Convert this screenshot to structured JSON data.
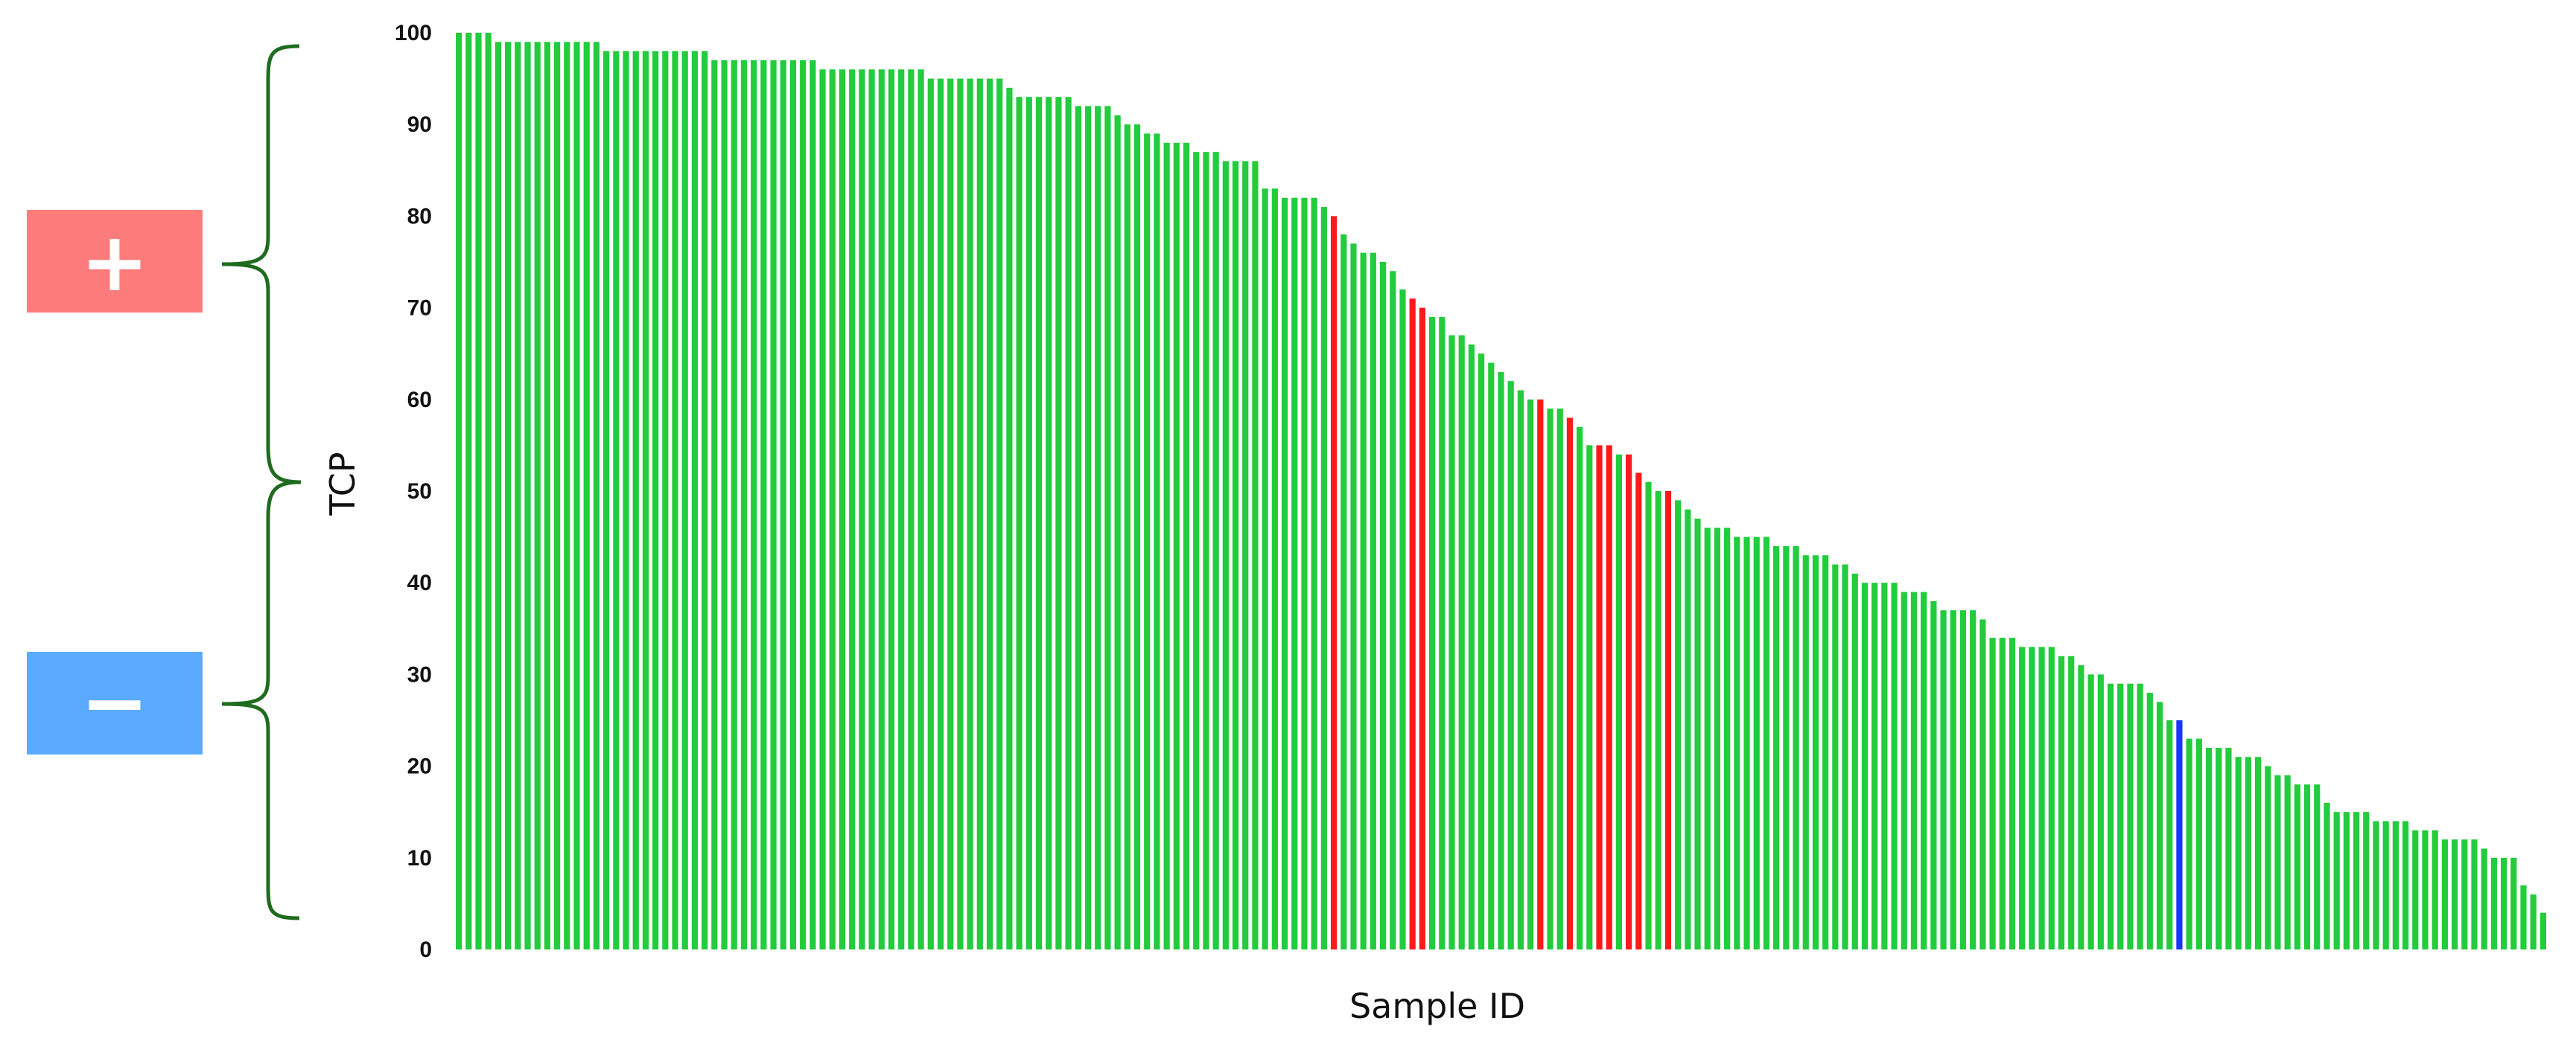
{
  "chart_data": {
    "type": "bar",
    "title": "",
    "xlabel": "Sample ID",
    "ylabel": "TCP",
    "ylim": [
      0,
      100
    ],
    "yticks": [
      0,
      10,
      20,
      30,
      40,
      50,
      60,
      70,
      80,
      90,
      100
    ],
    "grid": false,
    "legend": "none",
    "colors": {
      "default": "#22cc3c",
      "highlight_red": "#ff1a1a",
      "highlight_blue": "#1a33ff"
    },
    "values": [
      100,
      100,
      100,
      100,
      99,
      99,
      99,
      99,
      99,
      99,
      99,
      99,
      99,
      99,
      99,
      98,
      98,
      98,
      98,
      98,
      98,
      98,
      98,
      98,
      98,
      98,
      97,
      97,
      97,
      97,
      97,
      97,
      97,
      97,
      97,
      97,
      97,
      96,
      96,
      96,
      96,
      96,
      96,
      96,
      96,
      96,
      96,
      96,
      95,
      95,
      95,
      95,
      95,
      95,
      95,
      95,
      94,
      93,
      93,
      93,
      93,
      93,
      93,
      92,
      92,
      92,
      92,
      91,
      90,
      90,
      89,
      89,
      88,
      88,
      88,
      87,
      87,
      87,
      86,
      86,
      86,
      86,
      83,
      83,
      82,
      82,
      82,
      82,
      81,
      80,
      78,
      77,
      76,
      76,
      75,
      74,
      72,
      71,
      70,
      69,
      69,
      67,
      67,
      66,
      65,
      64,
      63,
      62,
      61,
      60,
      60,
      59,
      59,
      58,
      57,
      55,
      55,
      55,
      54,
      54,
      52,
      51,
      50,
      50,
      49,
      48,
      47,
      46,
      46,
      46,
      45,
      45,
      45,
      45,
      44,
      44,
      44,
      43,
      43,
      43,
      42,
      42,
      41,
      40,
      40,
      40,
      40,
      39,
      39,
      39,
      38,
      37,
      37,
      37,
      37,
      36,
      34,
      34,
      34,
      33,
      33,
      33,
      33,
      32,
      32,
      31,
      30,
      30,
      29,
      29,
      29,
      29,
      28,
      27,
      25,
      25,
      23,
      23,
      22,
      22,
      22,
      21,
      21,
      21,
      20,
      19,
      19,
      18,
      18,
      18,
      16,
      15,
      15,
      15,
      15,
      14,
      14,
      14,
      14,
      13,
      13,
      13,
      12,
      12,
      12,
      12,
      11,
      10,
      10,
      10,
      7,
      6,
      4
    ],
    "highlighted": [
      {
        "index": 89,
        "color": "red"
      },
      {
        "index": 97,
        "color": "red"
      },
      {
        "index": 98,
        "color": "red"
      },
      {
        "index": 110,
        "color": "red"
      },
      {
        "index": 113,
        "color": "red"
      },
      {
        "index": 116,
        "color": "red"
      },
      {
        "index": 117,
        "color": "red"
      },
      {
        "index": 119,
        "color": "red"
      },
      {
        "index": 120,
        "color": "red"
      },
      {
        "index": 123,
        "color": "red"
      },
      {
        "index": 175,
        "color": "blue"
      }
    ]
  },
  "annotations": {
    "plus": {
      "symbol": "+",
      "color": "#fe7b7b"
    },
    "minus": {
      "symbol": "−",
      "color": "#5aabff"
    },
    "brace_color": "#1f6b1f"
  }
}
